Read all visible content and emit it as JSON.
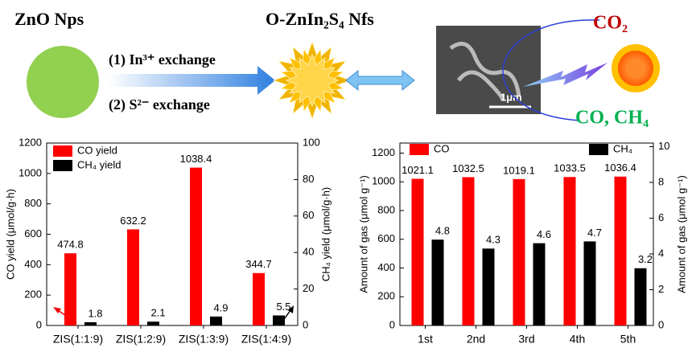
{
  "scheme": {
    "left_label": "ZnO Nps",
    "middle_label": "O-ZnIn₂S₄ Nfs",
    "step1": "(1) In³⁺  exchange",
    "step2": "(2) S²⁻  exchange",
    "scale_bar": "1μm",
    "co2": "CO₂",
    "products": "CO, CH₄"
  },
  "chart_data": [
    {
      "type": "bar",
      "categories": [
        "ZIS(1:1:9)",
        "ZIS(1:2:9)",
        "ZIS(1:3:9)",
        "ZIS(1:4:9)"
      ],
      "series": [
        {
          "name": "CO yield",
          "color": "#ff0000",
          "values": [
            474.8,
            632.2,
            1038.4,
            344.7
          ]
        },
        {
          "name": "CH₄ yield",
          "color": "#000000",
          "axis": "y2",
          "values": [
            1.8,
            2.1,
            4.9,
            5.5
          ]
        }
      ],
      "ylabel": "CO yield (μmol/g·h)",
      "y2label": "CH₄ yield (μmol/g·h)",
      "ylim": [
        0,
        1200
      ],
      "yticks": [
        0,
        200,
        400,
        600,
        800,
        1000,
        1200
      ],
      "y2lim": [
        0,
        100
      ],
      "y2ticks": [
        0,
        20,
        40,
        60,
        80,
        100
      ],
      "legend": "upper left",
      "grid": false
    },
    {
      "type": "bar",
      "categories": [
        "1st",
        "2nd",
        "3rd",
        "4th",
        "5th"
      ],
      "series": [
        {
          "name": "CO",
          "color": "#ff0000",
          "values": [
            1021.1,
            1032.5,
            1019.1,
            1033.5,
            1036.4
          ]
        },
        {
          "name": "CH₄",
          "color": "#000000",
          "axis": "y2",
          "values": [
            4.8,
            4.3,
            4.6,
            4.7,
            3.2
          ]
        }
      ],
      "ylabel": "Amount of gas (μmol g⁻¹)",
      "y2label": "Amount of gas (μmol g⁻¹)",
      "ylim": [
        0,
        1270
      ],
      "yticks": [
        0,
        200,
        400,
        600,
        800,
        1000,
        1200
      ],
      "y2lim": [
        0,
        10.2
      ],
      "y2ticks": [
        0,
        2,
        4,
        6,
        8,
        10
      ],
      "legend": "top",
      "grid": false
    }
  ]
}
